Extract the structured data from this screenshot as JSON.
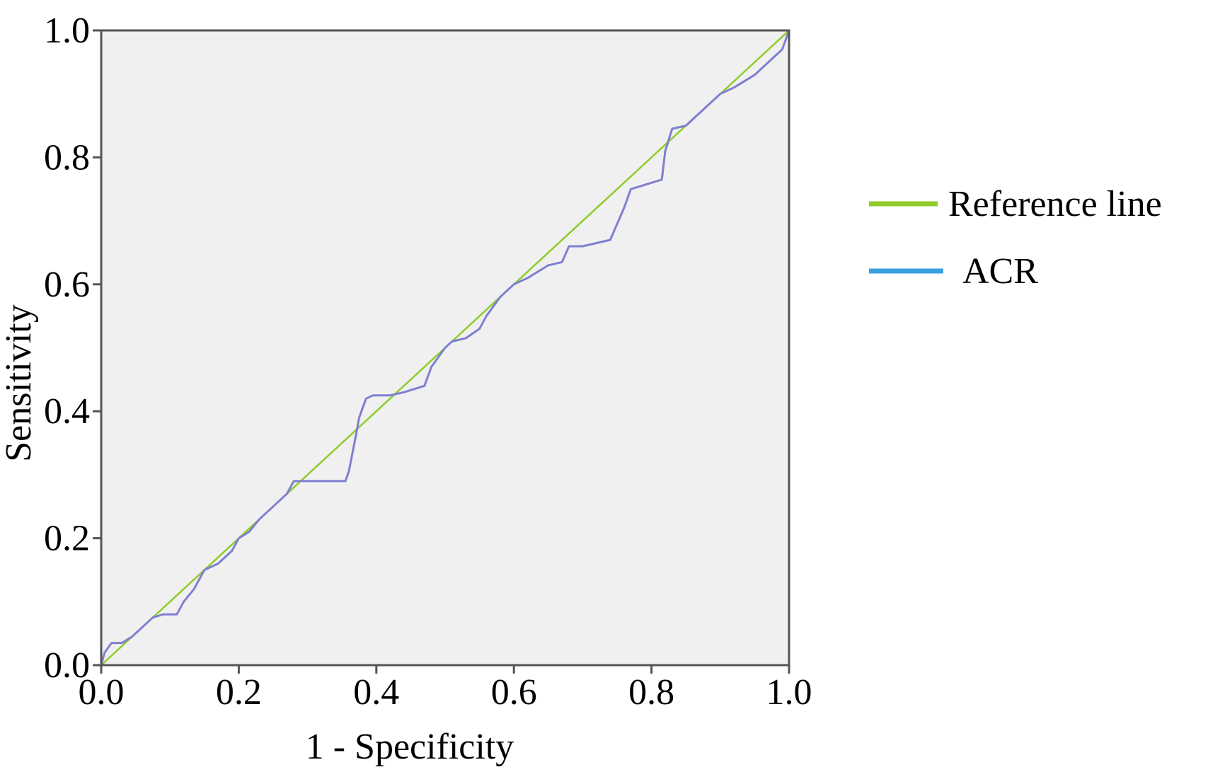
{
  "chart_data": {
    "type": "line",
    "title": "",
    "xlabel": "1 - Specificity",
    "ylabel": "Sensitivity",
    "xlim": [
      0.0,
      1.0
    ],
    "ylim": [
      0.0,
      1.0
    ],
    "xticks": [
      "0.0",
      "0.2",
      "0.4",
      "0.6",
      "0.8",
      "1.0"
    ],
    "yticks": [
      "0.0",
      "0.2",
      "0.4",
      "0.6",
      "0.8",
      "1.0"
    ],
    "grid": false,
    "plot_background": "#f0f0f0",
    "legend_position": "right",
    "series": [
      {
        "name": "Reference line",
        "color": "#8fcc2a",
        "x": [
          0.0,
          1.0
        ],
        "y": [
          0.0,
          1.0
        ]
      },
      {
        "name": "ACR",
        "color": "#7f7fd0",
        "x": [
          0.0,
          0.005,
          0.015,
          0.03,
          0.045,
          0.06,
          0.075,
          0.09,
          0.11,
          0.12,
          0.135,
          0.15,
          0.17,
          0.19,
          0.2,
          0.215,
          0.23,
          0.25,
          0.27,
          0.28,
          0.3,
          0.33,
          0.355,
          0.36,
          0.37,
          0.375,
          0.385,
          0.395,
          0.42,
          0.44,
          0.47,
          0.48,
          0.5,
          0.51,
          0.53,
          0.55,
          0.56,
          0.58,
          0.6,
          0.62,
          0.65,
          0.67,
          0.68,
          0.7,
          0.74,
          0.76,
          0.77,
          0.8,
          0.815,
          0.82,
          0.83,
          0.85,
          0.87,
          0.9,
          0.92,
          0.95,
          0.97,
          0.99,
          1.0
        ],
        "y": [
          0.0,
          0.02,
          0.035,
          0.035,
          0.045,
          0.06,
          0.075,
          0.08,
          0.08,
          0.1,
          0.12,
          0.15,
          0.16,
          0.18,
          0.2,
          0.21,
          0.23,
          0.25,
          0.27,
          0.29,
          0.29,
          0.29,
          0.29,
          0.305,
          0.36,
          0.39,
          0.42,
          0.425,
          0.425,
          0.43,
          0.44,
          0.47,
          0.5,
          0.51,
          0.515,
          0.53,
          0.55,
          0.58,
          0.6,
          0.61,
          0.63,
          0.635,
          0.66,
          0.66,
          0.67,
          0.72,
          0.75,
          0.76,
          0.765,
          0.81,
          0.845,
          0.85,
          0.87,
          0.9,
          0.91,
          0.93,
          0.95,
          0.97,
          1.0
        ]
      }
    ]
  }
}
